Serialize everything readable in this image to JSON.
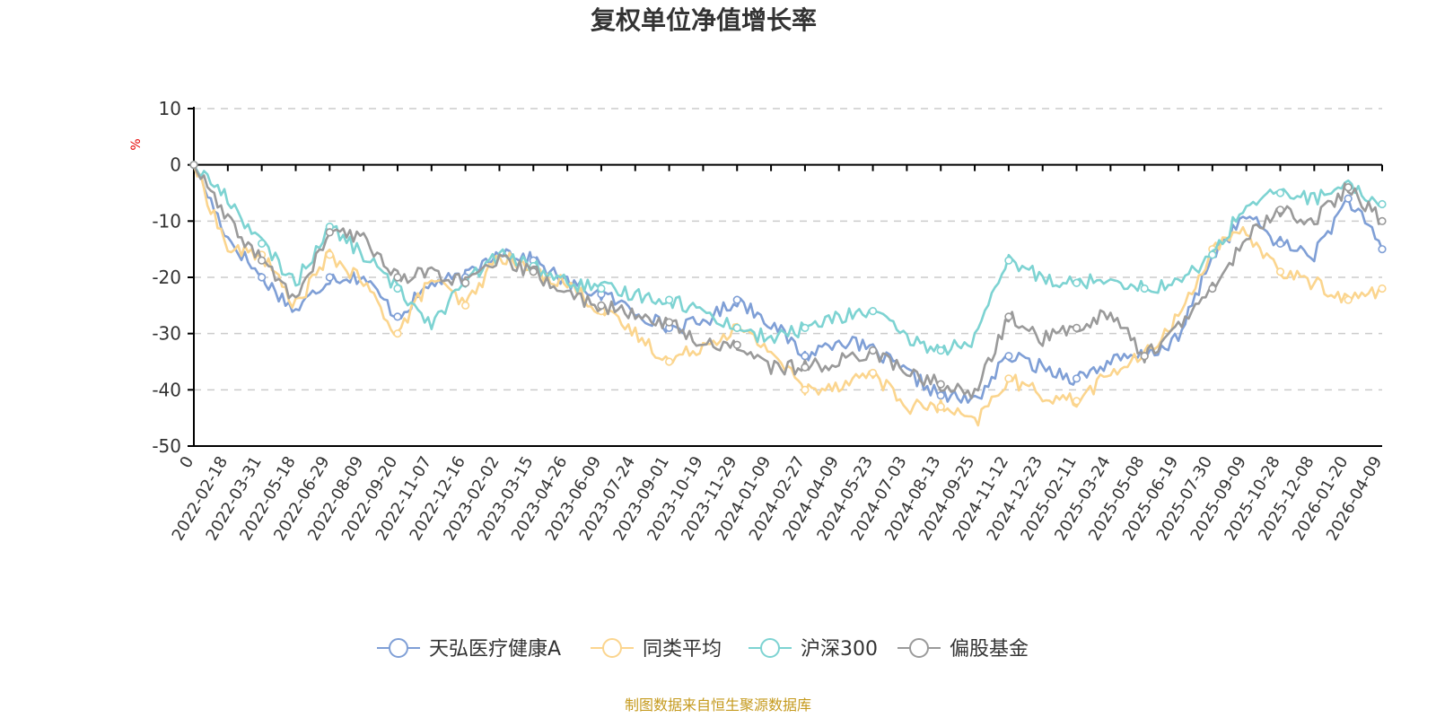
{
  "chart_data": {
    "type": "line",
    "title": "复权单位净值增长率",
    "ylabel": "%",
    "xlabel": "",
    "ylim": [
      -50,
      10
    ],
    "yticks": [
      10,
      0,
      -10,
      -20,
      -30,
      -40,
      -50
    ],
    "categories": [
      "0",
      "2022-02-18",
      "2022-03-31",
      "2022-05-18",
      "2022-06-29",
      "2022-08-09",
      "2022-09-20",
      "2022-11-07",
      "2022-12-16",
      "2023-02-02",
      "2023-03-15",
      "2023-04-26",
      "2023-06-09",
      "2023-07-24",
      "2023-09-01",
      "2023-10-19",
      "2023-11-29",
      "2024-01-09",
      "2024-02-27",
      "2024-04-09",
      "2024-05-23",
      "2024-07-03",
      "2024-08-13",
      "2024-09-25",
      "2024-11-12",
      "2024-12-23",
      "2025-02-11",
      "2025-03-24",
      "2025-05-08",
      "2025-06-19",
      "2025-07-30",
      "2025-09-09",
      "2025-10-28",
      "2025-12-08",
      "2026-01-20",
      "2026-04-09"
    ],
    "series": [
      {
        "name": "天弘医疗健康A",
        "color": "#7f9fd6",
        "values": [
          0,
          -13,
          -20,
          -26,
          -20,
          -20,
          -27,
          -21,
          -20,
          -15,
          -17,
          -21,
          -23,
          -26,
          -29,
          -28,
          -24,
          -28,
          -34,
          -31,
          -33,
          -37,
          -41,
          -42,
          -34,
          -36,
          -38,
          -35,
          -34,
          -31,
          -16,
          -9,
          -14,
          -16,
          -6,
          -15
        ]
      },
      {
        "name": "同类平均",
        "color": "#fbd58e",
        "values": [
          0,
          -15,
          -16,
          -25,
          -16,
          -21,
          -30,
          -20,
          -25,
          -16,
          -19,
          -21,
          -26,
          -30,
          -35,
          -32,
          -29,
          -33,
          -40,
          -39,
          -37,
          -43,
          -43,
          -46,
          -38,
          -41,
          -42,
          -37,
          -34,
          -27,
          -15,
          -12,
          -19,
          -21,
          -24,
          -22
        ]
      },
      {
        "name": "沪深300",
        "color": "#7dd3d2",
        "values": [
          0,
          -6,
          -14,
          -21,
          -11,
          -16,
          -22,
          -28,
          -21,
          -16,
          -18,
          -21,
          -22,
          -23,
          -24,
          -26,
          -29,
          -31,
          -29,
          -27,
          -26,
          -31,
          -33,
          -31,
          -17,
          -20,
          -21,
          -20,
          -22,
          -21,
          -16,
          -7,
          -5,
          -6,
          -4,
          -7
        ]
      },
      {
        "name": "偏股基金",
        "color": "#9a9a9a",
        "values": [
          0,
          -10,
          -17,
          -24,
          -12,
          -13,
          -20,
          -19,
          -21,
          -17,
          -19,
          -23,
          -25,
          -27,
          -28,
          -32,
          -32,
          -36,
          -36,
          -35,
          -33,
          -37,
          -39,
          -41,
          -27,
          -31,
          -29,
          -26,
          -34,
          -29,
          -22,
          -13,
          -8,
          -10,
          -4,
          -10
        ]
      }
    ],
    "legend": "bottom-center"
  },
  "source_note": "制图数据来自恒生聚源数据库"
}
